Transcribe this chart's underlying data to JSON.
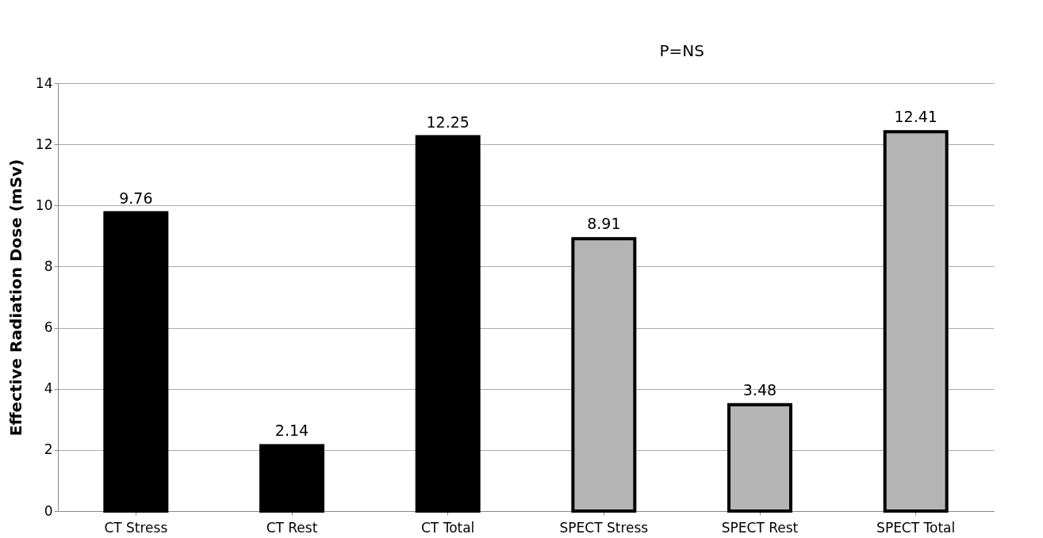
{
  "chart_data": {
    "type": "bar",
    "ylabel": "Effective Radiation Dose (mSv)",
    "categories": [
      "CT Stress",
      "CT Rest",
      "CT Total",
      "SPECT Stress",
      "SPECT Rest",
      "SPECT Total"
    ],
    "values": [
      9.76,
      2.14,
      12.25,
      8.91,
      3.48,
      12.41
    ],
    "colors": [
      "#000000",
      "#000000",
      "#000000",
      "#b4b4b4",
      "#b4b4b4",
      "#b4b4b4"
    ],
    "ylim": [
      0,
      14
    ],
    "yticks": [
      0,
      2,
      4,
      6,
      8,
      10,
      12,
      14
    ],
    "grid": "y",
    "data_labels": true,
    "annotations": [
      "P=NS"
    ]
  }
}
